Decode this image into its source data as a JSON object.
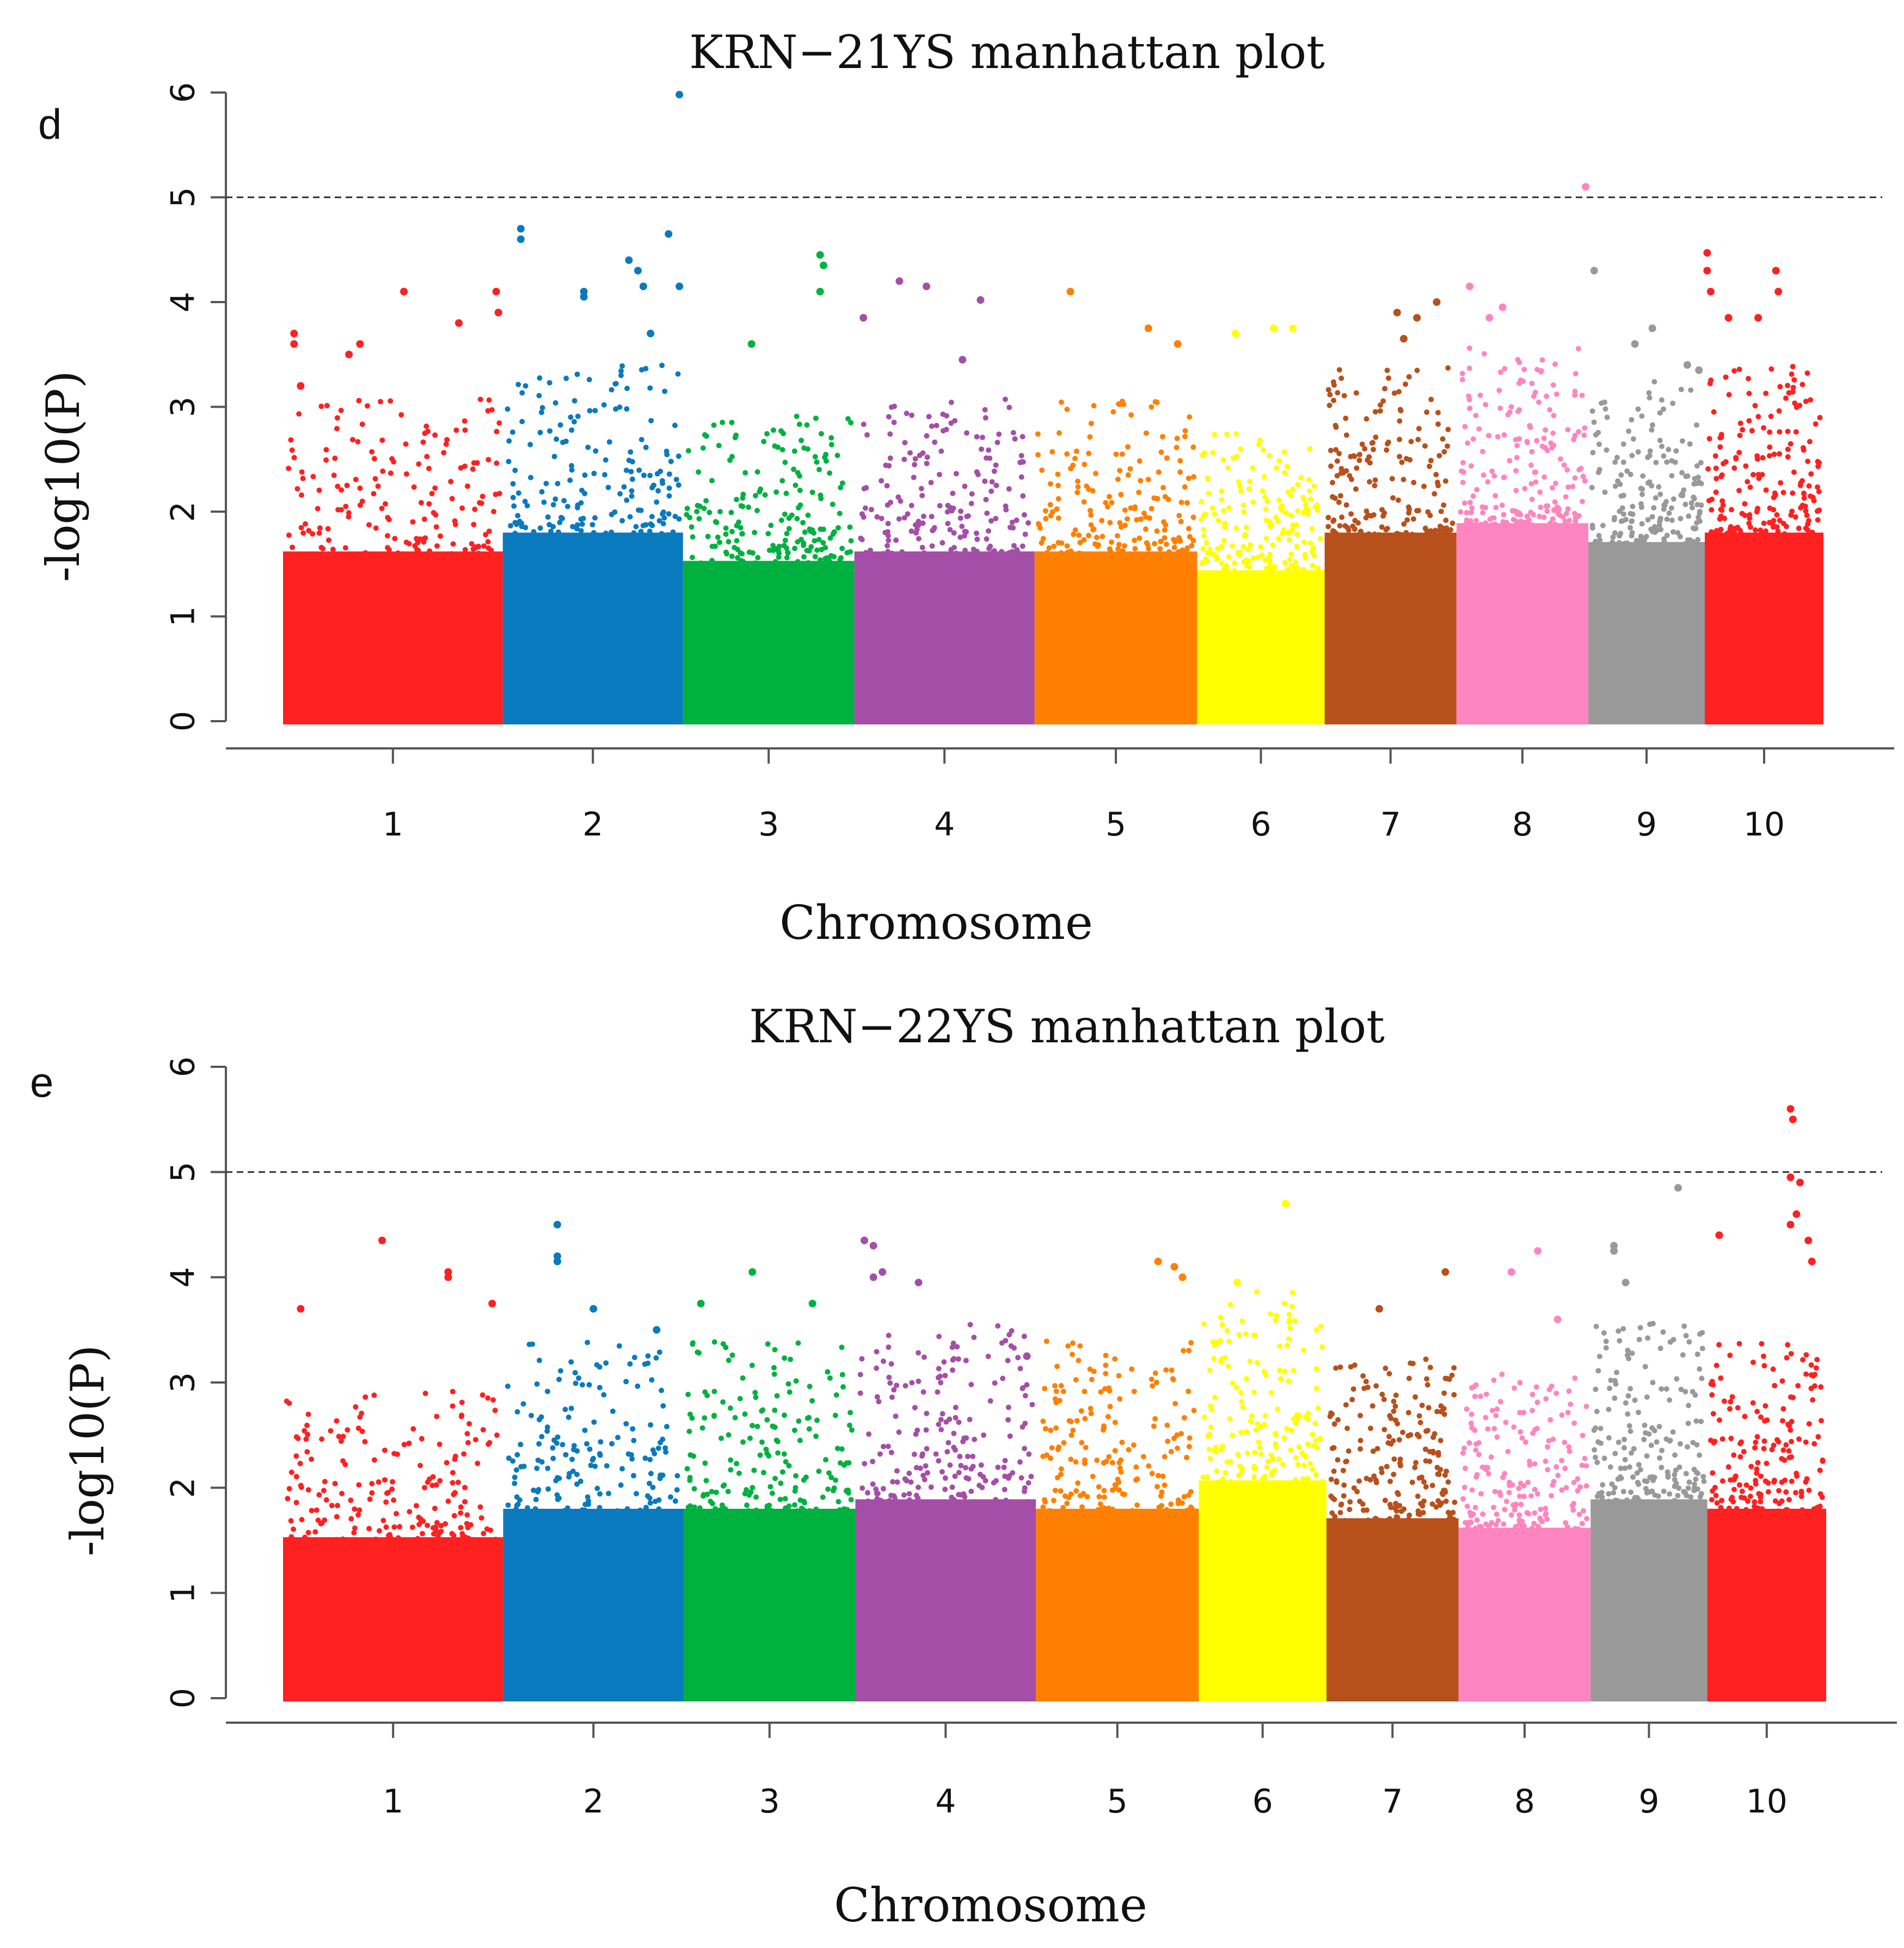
{
  "chart_data": [
    {
      "panel_label": "d",
      "type": "scatter",
      "subtype": "manhattan",
      "title": "KRN−21YS manhattan plot",
      "xlabel": "Chromosome",
      "ylabel": "-log10(P)",
      "ylim": [
        0,
        6
      ],
      "yticks": [
        0,
        1,
        2,
        3,
        4,
        5,
        6
      ],
      "threshold": 5,
      "categories": [
        "1",
        "2",
        "3",
        "4",
        "5",
        "6",
        "7",
        "8",
        "9",
        "10"
      ],
      "chromosome_widths": [
        1.0,
        0.82,
        0.78,
        0.82,
        0.74,
        0.58,
        0.6,
        0.6,
        0.53,
        0.54
      ],
      "colors": [
        "#ff2020",
        "#0a7abf",
        "#00b140",
        "#a54ea8",
        "#ff8000",
        "#ffff00",
        "#b8501c",
        "#ff85c0",
        "#999999",
        "#ff2020"
      ],
      "dense_band_max": [
        1.8,
        2.0,
        1.7,
        1.8,
        1.8,
        1.6,
        2.0,
        2.1,
        1.9,
        2.0
      ],
      "series": [
        {
          "name": "1",
          "values": [
            [
              0.05,
              3.6
            ],
            [
              0.05,
              3.7
            ],
            [
              0.08,
              3.2
            ],
            [
              0.3,
              3.5
            ],
            [
              0.35,
              3.6
            ],
            [
              0.55,
              4.1
            ],
            [
              0.8,
              3.8
            ],
            [
              0.97,
              4.1
            ],
            [
              0.98,
              3.9
            ]
          ]
        },
        {
          "name": "2",
          "values": [
            [
              0.1,
              4.7
            ],
            [
              0.1,
              4.6
            ],
            [
              0.45,
              4.1
            ],
            [
              0.45,
              4.05
            ],
            [
              0.7,
              4.4
            ],
            [
              0.75,
              4.3
            ],
            [
              0.78,
              4.15
            ],
            [
              0.82,
              3.7
            ],
            [
              0.92,
              4.65
            ],
            [
              0.98,
              5.98
            ],
            [
              0.98,
              4.15
            ]
          ]
        },
        {
          "name": "3",
          "values": [
            [
              0.4,
              3.6
            ],
            [
              0.8,
              4.45
            ],
            [
              0.82,
              4.35
            ],
            [
              0.8,
              4.1
            ]
          ]
        },
        {
          "name": "4",
          "values": [
            [
              0.05,
              3.85
            ],
            [
              0.25,
              4.2
            ],
            [
              0.4,
              4.15
            ],
            [
              0.7,
              4.02
            ],
            [
              0.6,
              3.45
            ]
          ]
        },
        {
          "name": "5",
          "values": [
            [
              0.22,
              4.1
            ],
            [
              0.7,
              3.75
            ],
            [
              0.88,
              3.6
            ]
          ]
        },
        {
          "name": "6",
          "values": [
            [
              0.3,
              3.7
            ],
            [
              0.6,
              3.75
            ],
            [
              0.75,
              3.75
            ]
          ]
        },
        {
          "name": "7",
          "values": [
            [
              0.55,
              3.9
            ],
            [
              0.6,
              3.65
            ],
            [
              0.7,
              3.85
            ],
            [
              0.85,
              4.0
            ]
          ]
        },
        {
          "name": "8",
          "values": [
            [
              0.1,
              4.15
            ],
            [
              0.25,
              3.85
            ],
            [
              0.35,
              3.95
            ],
            [
              0.98,
              5.1
            ]
          ]
        },
        {
          "name": "9",
          "values": [
            [
              0.05,
              4.3
            ],
            [
              0.4,
              3.6
            ],
            [
              0.55,
              3.75
            ],
            [
              0.85,
              3.4
            ],
            [
              0.95,
              3.35
            ]
          ]
        },
        {
          "name": "10",
          "values": [
            [
              0.02,
              4.47
            ],
            [
              0.02,
              4.3
            ],
            [
              0.05,
              4.1
            ],
            [
              0.2,
              3.85
            ],
            [
              0.45,
              3.85
            ],
            [
              0.6,
              4.3
            ],
            [
              0.62,
              4.1
            ]
          ]
        }
      ]
    },
    {
      "panel_label": "e",
      "type": "scatter",
      "subtype": "manhattan",
      "title": "KRN−22YS manhattan plot",
      "xlabel": "Chromosome",
      "ylabel": "-log10(P)",
      "ylim": [
        0,
        6
      ],
      "yticks": [
        0,
        1,
        2,
        3,
        4,
        5,
        6
      ],
      "threshold": 5,
      "categories": [
        "1",
        "2",
        "3",
        "4",
        "5",
        "6",
        "7",
        "8",
        "9",
        "10"
      ],
      "chromosome_widths": [
        1.0,
        0.82,
        0.78,
        0.82,
        0.74,
        0.58,
        0.6,
        0.6,
        0.53,
        0.54
      ],
      "colors": [
        "#ff2020",
        "#0a7abf",
        "#00b140",
        "#a54ea8",
        "#ff8000",
        "#ffff00",
        "#b8501c",
        "#ff85c0",
        "#999999",
        "#ff2020"
      ],
      "dense_band_max": [
        1.7,
        2.0,
        2.0,
        2.1,
        2.0,
        2.3,
        1.9,
        1.8,
        2.1,
        2.0
      ],
      "series": [
        {
          "name": "1",
          "values": [
            [
              0.08,
              3.7
            ],
            [
              0.45,
              4.35
            ],
            [
              0.75,
              4.0
            ],
            [
              0.75,
              4.05
            ],
            [
              0.95,
              3.75
            ]
          ]
        },
        {
          "name": "2",
          "values": [
            [
              0.3,
              4.5
            ],
            [
              0.3,
              4.2
            ],
            [
              0.3,
              4.15
            ],
            [
              0.5,
              3.7
            ],
            [
              0.85,
              3.5
            ]
          ]
        },
        {
          "name": "3",
          "values": [
            [
              0.1,
              3.75
            ],
            [
              0.4,
              4.05
            ],
            [
              0.75,
              3.75
            ]
          ]
        },
        {
          "name": "4",
          "values": [
            [
              0.05,
              4.35
            ],
            [
              0.1,
              4.3
            ],
            [
              0.1,
              4.0
            ],
            [
              0.15,
              4.05
            ],
            [
              0.35,
              3.95
            ],
            [
              0.95,
              3.25
            ]
          ]
        },
        {
          "name": "5",
          "values": [
            [
              0.75,
              4.15
            ],
            [
              0.85,
              4.1
            ],
            [
              0.9,
              4.0
            ]
          ]
        },
        {
          "name": "6",
          "values": [
            [
              0.3,
              3.95
            ],
            [
              0.68,
              4.7
            ]
          ]
        },
        {
          "name": "7",
          "values": [
            [
              0.4,
              3.7
            ],
            [
              0.9,
              4.05
            ]
          ]
        },
        {
          "name": "8",
          "values": [
            [
              0.4,
              4.05
            ],
            [
              0.6,
              4.25
            ],
            [
              0.75,
              3.6
            ]
          ]
        },
        {
          "name": "9",
          "values": [
            [
              0.2,
              4.3
            ],
            [
              0.2,
              4.25
            ],
            [
              0.3,
              3.95
            ],
            [
              0.75,
              4.85
            ]
          ]
        },
        {
          "name": "10",
          "values": [
            [
              0.1,
              4.4
            ],
            [
              0.7,
              5.6
            ],
            [
              0.72,
              5.5
            ],
            [
              0.7,
              4.95
            ],
            [
              0.78,
              4.9
            ],
            [
              0.75,
              4.6
            ],
            [
              0.7,
              4.5
            ],
            [
              0.85,
              4.35
            ],
            [
              0.88,
              4.15
            ]
          ]
        }
      ]
    }
  ]
}
